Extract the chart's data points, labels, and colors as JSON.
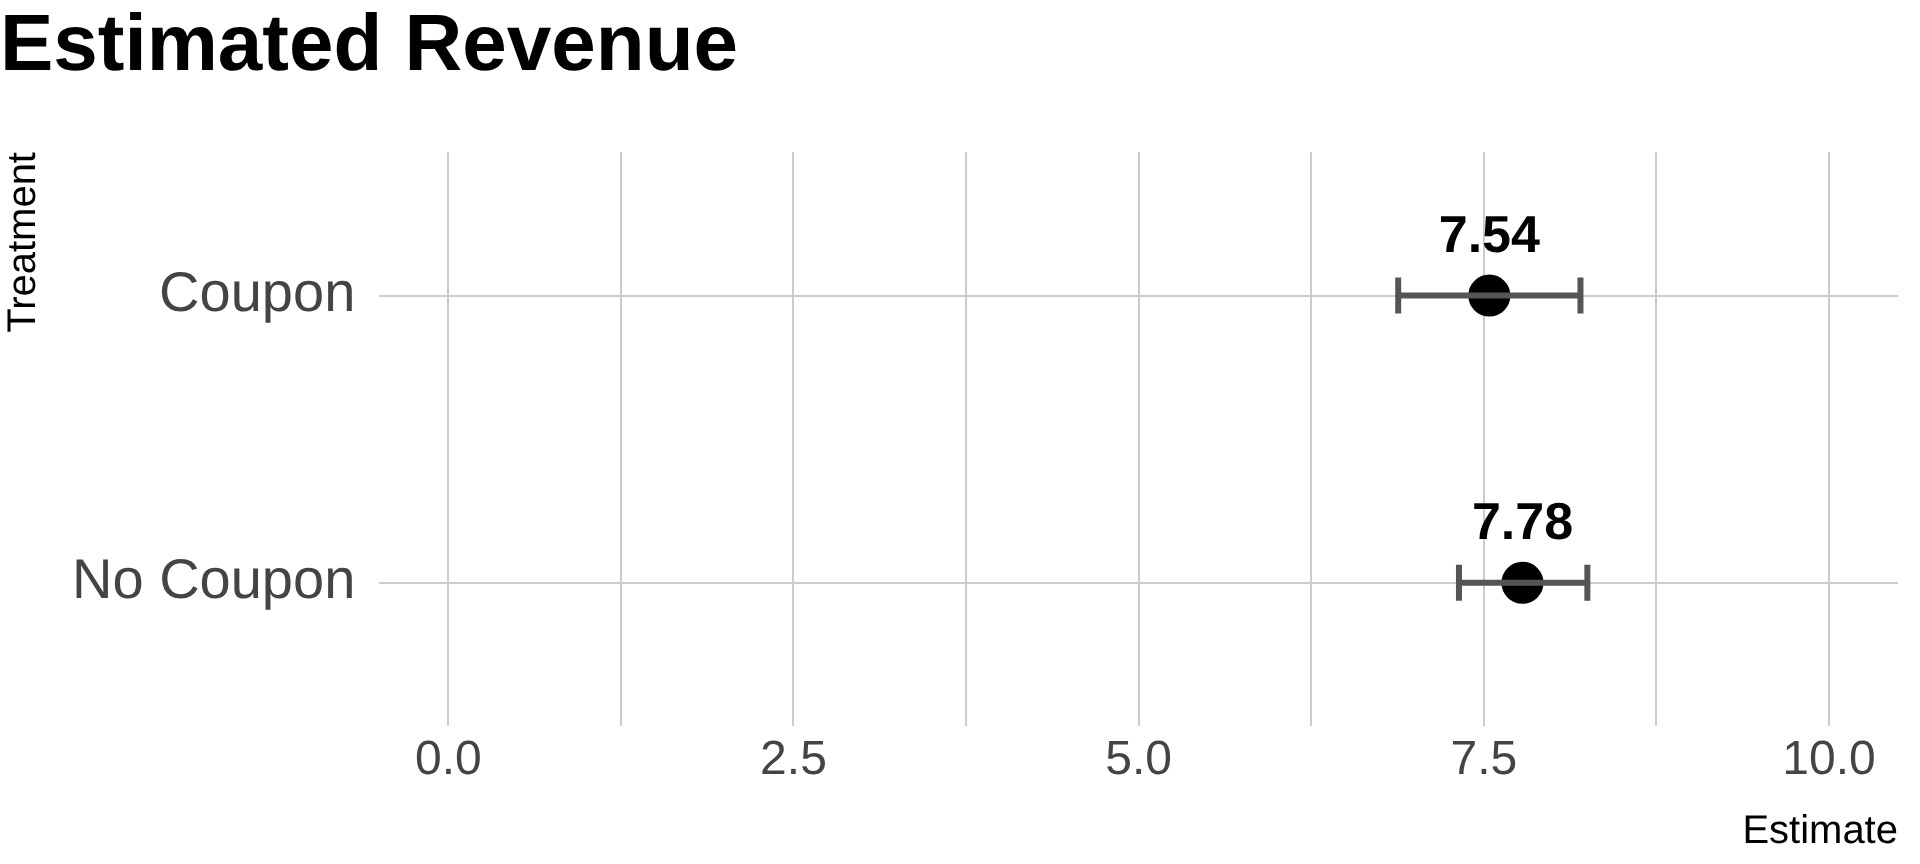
{
  "chart_data": {
    "type": "scatter",
    "title": "Estimated Revenue",
    "xlabel": "Estimate",
    "ylabel": "Treatment",
    "orientation": "horizontal",
    "categories": [
      "Coupon",
      "No Coupon"
    ],
    "values": [
      7.54,
      7.78
    ],
    "errors": [
      [
        6.88,
        8.2
      ],
      [
        7.32,
        8.25
      ]
    ],
    "color": "#000000",
    "marker": "circle",
    "data_labels": true,
    "grid": true,
    "legend": false,
    "xlim": [
      -0.5,
      10.5
    ],
    "xticks": [
      {
        "value": 0,
        "label": "0.0"
      },
      {
        "value": 1.25,
        "label": null
      },
      {
        "value": 2.5,
        "label": "2.5"
      },
      {
        "value": 3.75,
        "label": null
      },
      {
        "value": 5,
        "label": "5.0"
      },
      {
        "value": 6.25,
        "label": null
      },
      {
        "value": 7.5,
        "label": "7.5"
      },
      {
        "value": 8.75,
        "label": null
      },
      {
        "value": 10,
        "label": "10.0"
      }
    ]
  }
}
